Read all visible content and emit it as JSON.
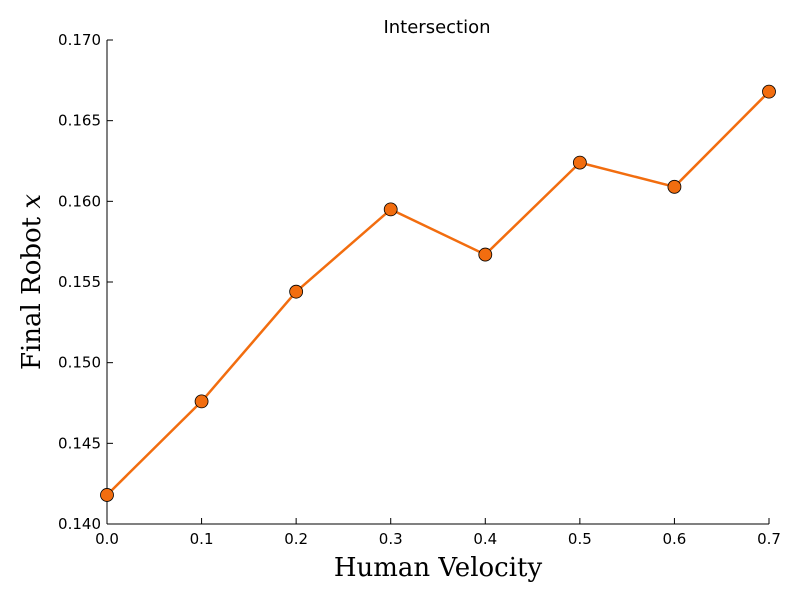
{
  "chart_data": {
    "type": "line",
    "title": "Intersection",
    "xlabel": "Human Velocity",
    "ylabel_text": "Final Robot ",
    "ylabel_var": "x",
    "xlim": [
      0.0,
      0.7
    ],
    "ylim": [
      0.14,
      0.17
    ],
    "xticks": [
      "0.0",
      "0.1",
      "0.2",
      "0.3",
      "0.4",
      "0.5",
      "0.6",
      "0.7"
    ],
    "yticks": [
      "0.140",
      "0.145",
      "0.150",
      "0.155",
      "0.160",
      "0.165",
      "0.170"
    ],
    "grid": false,
    "series": [
      {
        "x": [
          0.0,
          0.1,
          0.2,
          0.3,
          0.4,
          0.5,
          0.6,
          0.7
        ],
        "y": [
          0.1418,
          0.1476,
          0.1544,
          0.1595,
          0.1567,
          0.1624,
          0.1609,
          0.1668
        ],
        "color": "#f26d0f",
        "marker_color": "#f26d0f"
      }
    ]
  }
}
